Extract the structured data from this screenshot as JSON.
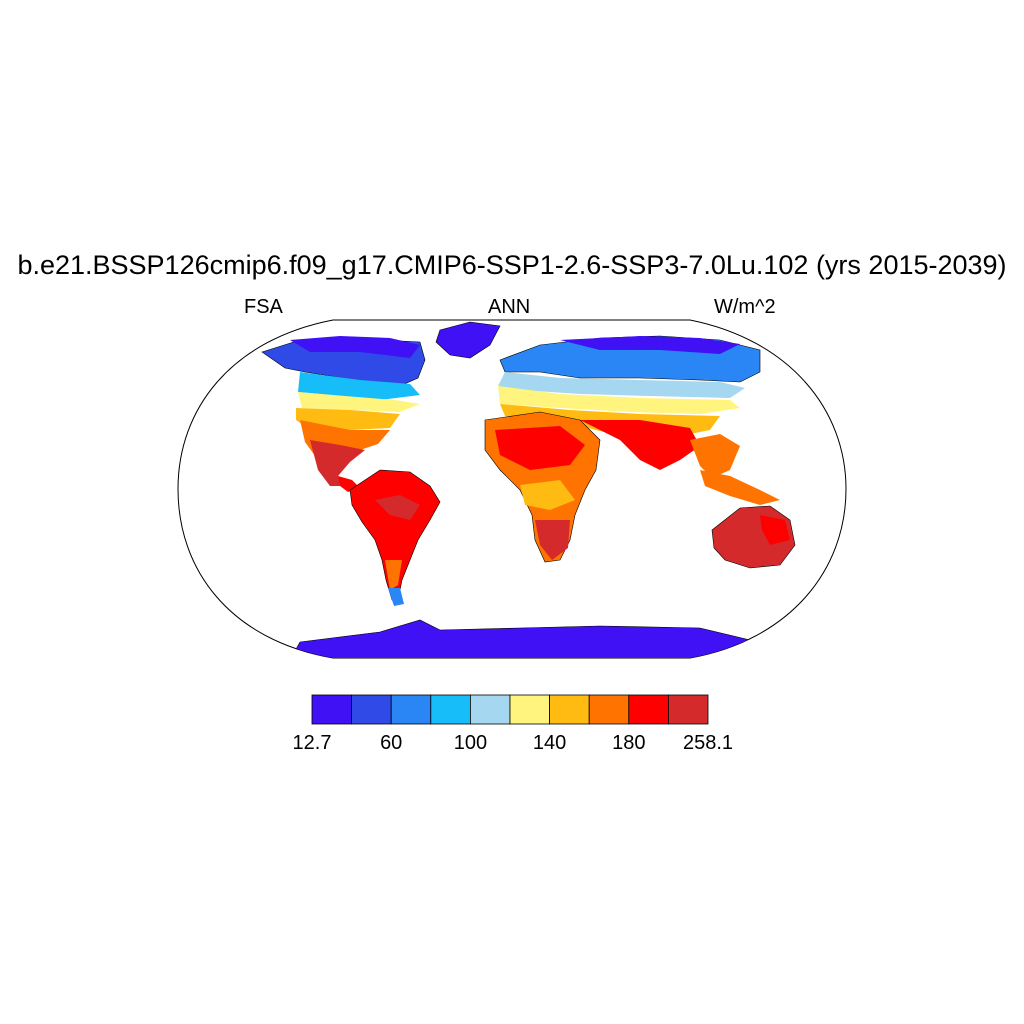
{
  "title": "b.e21.BSSP126cmip6.f09_g17.CMIP6-SSP1-2.6-SSP3-7.0Lu.102 (yrs 2015-2039)",
  "left_label": "FSA",
  "center_label": "ANN",
  "right_label": "W/m^2",
  "colorbar": {
    "colors": [
      "#3f11f4",
      "#2f4ae6",
      "#2a86f4",
      "#17bdf8",
      "#a5d7f0",
      "#fff47d",
      "#ffbb12",
      "#ff7300",
      "#ff0000",
      "#d42a2c"
    ],
    "labels": [
      "12.7",
      "60",
      "100",
      "140",
      "180",
      "258.1"
    ]
  },
  "colors": {
    "ocean": "#ffffff",
    "land_outline": "#000000"
  }
}
